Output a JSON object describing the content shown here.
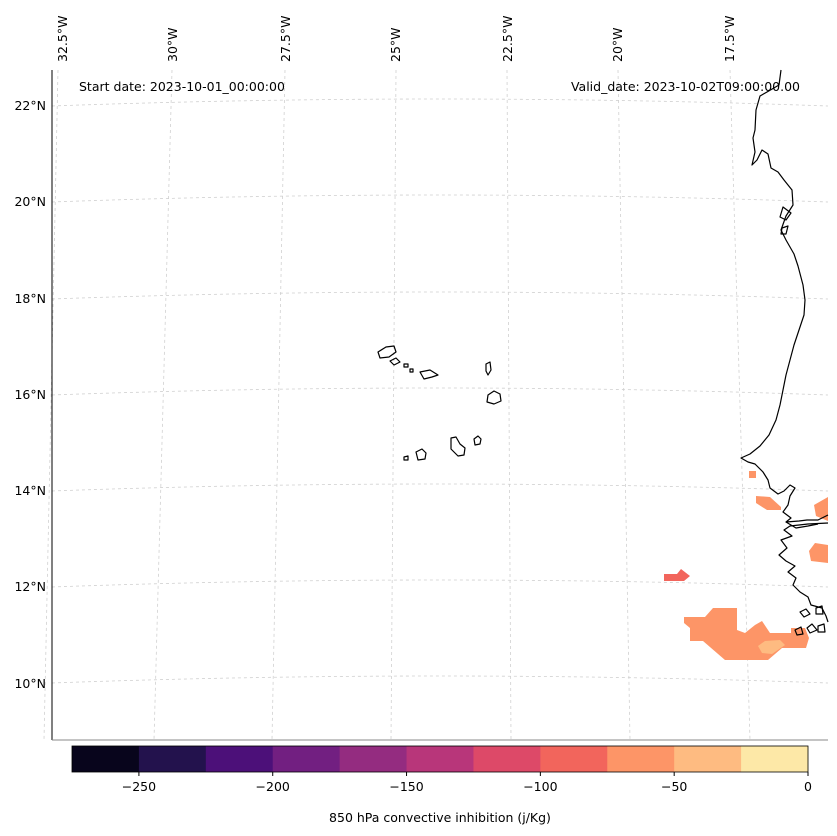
{
  "map": {
    "start_date_text": "Start date: 2023-10-01_00:00:00",
    "valid_date_text": "Valid_date: 2023-10-02T09:00:00.00",
    "lon_labels": [
      "32.5°W",
      "30°W",
      "27.5°W",
      "25°W",
      "22.5°W",
      "20°W",
      "17.5°W"
    ],
    "lat_labels": [
      "22°N",
      "20°N",
      "18°N",
      "16°N",
      "14°N",
      "12°N",
      "10°N"
    ],
    "gridlines": true,
    "coastline_color": "#000000",
    "field_region_names": [
      "cin-patch-senegal-coast",
      "cin-patch-gambia",
      "cin-patch-guinea-bissau",
      "cin-patch-offshore-12n",
      "cin-patch-guinea",
      "cin-patch-guinea-core"
    ]
  },
  "colorbar": {
    "label": "850 hPa convective inhibition (j/Kg)",
    "tick_labels": [
      "−250",
      "−200",
      "−150",
      "−100",
      "−50",
      "0"
    ],
    "levels": [
      -275,
      -250,
      -225,
      -200,
      -175,
      -150,
      -125,
      -100,
      -75,
      -50,
      -25,
      0
    ],
    "colors": [
      "#08051c",
      "#23124d",
      "#4c1079",
      "#721f81",
      "#942c80",
      "#b8367a",
      "#dd4968",
      "#f2655c",
      "#fd9567",
      "#febb81",
      "#fde8a7"
    ]
  }
}
